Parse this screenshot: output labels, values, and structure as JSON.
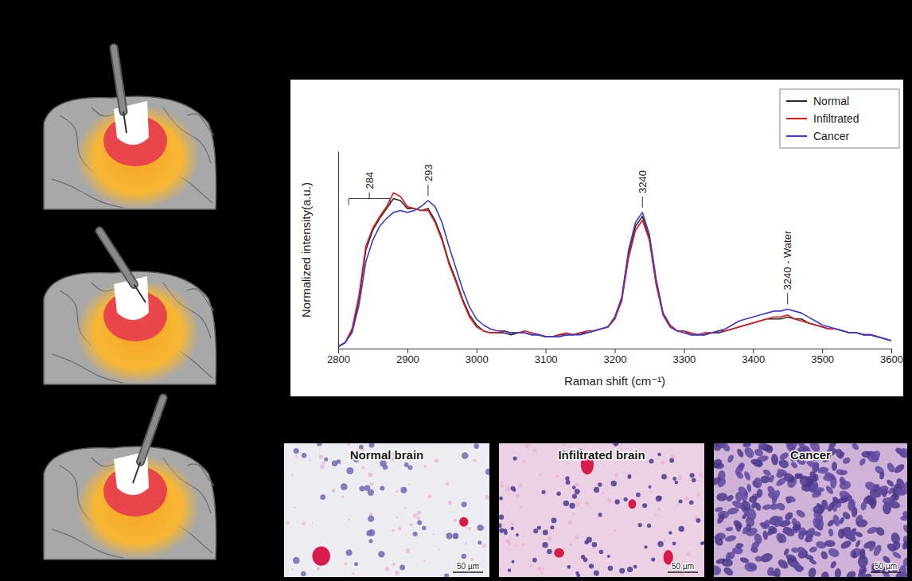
{
  "chart_data": {
    "type": "line",
    "x_label": "Raman shift (cm⁻¹)",
    "y_label": "Normalized intensity(a.u.)",
    "xlim": [
      2800,
      3600
    ],
    "xticks": [
      2800,
      2900,
      3000,
      3100,
      3200,
      3300,
      3400,
      3500,
      3600
    ],
    "ylim": [
      0,
      1
    ],
    "tick_labels": "x",
    "legend": "top-right",
    "x": [
      2800,
      2810,
      2820,
      2830,
      2840,
      2850,
      2860,
      2870,
      2880,
      2890,
      2900,
      2910,
      2920,
      2930,
      2940,
      2950,
      2960,
      2970,
      2980,
      2990,
      3000,
      3010,
      3020,
      3030,
      3040,
      3050,
      3060,
      3070,
      3080,
      3090,
      3100,
      3110,
      3120,
      3130,
      3140,
      3150,
      3160,
      3170,
      3180,
      3190,
      3200,
      3210,
      3220,
      3230,
      3240,
      3250,
      3260,
      3270,
      3280,
      3290,
      3300,
      3310,
      3320,
      3330,
      3340,
      3350,
      3360,
      3370,
      3380,
      3390,
      3400,
      3410,
      3420,
      3430,
      3440,
      3450,
      3460,
      3470,
      3480,
      3490,
      3500,
      3510,
      3520,
      3530,
      3540,
      3550,
      3560,
      3570,
      3580,
      3590,
      3600
    ],
    "series": [
      {
        "name": "Normal",
        "color": "#2b2b2b",
        "values": [
          0.01,
          0.03,
          0.09,
          0.25,
          0.5,
          0.6,
          0.66,
          0.71,
          0.76,
          0.75,
          0.71,
          0.71,
          0.7,
          0.71,
          0.65,
          0.56,
          0.44,
          0.35,
          0.25,
          0.17,
          0.12,
          0.09,
          0.08,
          0.08,
          0.08,
          0.07,
          0.08,
          0.08,
          0.07,
          0.07,
          0.06,
          0.06,
          0.07,
          0.07,
          0.07,
          0.08,
          0.08,
          0.09,
          0.1,
          0.11,
          0.15,
          0.25,
          0.48,
          0.62,
          0.67,
          0.56,
          0.33,
          0.17,
          0.11,
          0.09,
          0.09,
          0.07,
          0.07,
          0.07,
          0.08,
          0.08,
          0.09,
          0.1,
          0.11,
          0.12,
          0.13,
          0.14,
          0.15,
          0.15,
          0.15,
          0.16,
          0.15,
          0.15,
          0.13,
          0.12,
          0.11,
          0.1,
          0.1,
          0.09,
          0.08,
          0.08,
          0.07,
          0.07,
          0.06,
          0.05,
          0.04
        ]
      },
      {
        "name": "Infiltrated",
        "color": "#e41a1c",
        "values": [
          0.01,
          0.03,
          0.1,
          0.27,
          0.52,
          0.61,
          0.67,
          0.72,
          0.79,
          0.77,
          0.72,
          0.71,
          0.7,
          0.7,
          0.64,
          0.55,
          0.43,
          0.34,
          0.24,
          0.16,
          0.11,
          0.09,
          0.08,
          0.08,
          0.09,
          0.08,
          0.08,
          0.09,
          0.08,
          0.07,
          0.06,
          0.06,
          0.07,
          0.08,
          0.07,
          0.08,
          0.09,
          0.09,
          0.1,
          0.11,
          0.15,
          0.24,
          0.46,
          0.6,
          0.65,
          0.55,
          0.32,
          0.17,
          0.11,
          0.09,
          0.09,
          0.08,
          0.07,
          0.08,
          0.08,
          0.09,
          0.09,
          0.1,
          0.11,
          0.12,
          0.13,
          0.14,
          0.15,
          0.16,
          0.16,
          0.17,
          0.15,
          0.14,
          0.13,
          0.12,
          0.11,
          0.1,
          0.1,
          0.09,
          0.08,
          0.08,
          0.07,
          0.07,
          0.06,
          0.05,
          0.04
        ]
      },
      {
        "name": "Cancer",
        "color": "#3b3bd9",
        "values": [
          0.01,
          0.03,
          0.08,
          0.22,
          0.44,
          0.55,
          0.62,
          0.66,
          0.69,
          0.7,
          0.69,
          0.7,
          0.72,
          0.75,
          0.72,
          0.64,
          0.52,
          0.41,
          0.3,
          0.21,
          0.15,
          0.12,
          0.1,
          0.09,
          0.09,
          0.08,
          0.08,
          0.08,
          0.07,
          0.07,
          0.06,
          0.06,
          0.06,
          0.07,
          0.07,
          0.07,
          0.08,
          0.09,
          0.1,
          0.11,
          0.16,
          0.26,
          0.5,
          0.64,
          0.69,
          0.58,
          0.35,
          0.18,
          0.12,
          0.09,
          0.08,
          0.07,
          0.07,
          0.07,
          0.08,
          0.09,
          0.1,
          0.12,
          0.14,
          0.15,
          0.16,
          0.17,
          0.18,
          0.19,
          0.19,
          0.2,
          0.19,
          0.18,
          0.16,
          0.14,
          0.12,
          0.11,
          0.1,
          0.09,
          0.08,
          0.08,
          0.07,
          0.07,
          0.06,
          0.05,
          0.04
        ]
      }
    ],
    "annotations": [
      {
        "text": "284",
        "x": 2845,
        "range": [
          2815,
          2875
        ]
      },
      {
        "text": "293",
        "x": 2930
      },
      {
        "text": "3240",
        "x": 3240
      },
      {
        "text": "3240 - Water",
        "x": 3450
      }
    ]
  },
  "histology": [
    {
      "title": "Normal brain",
      "scale_bar": "50 µm"
    },
    {
      "title": "Infiltrated brain",
      "scale_bar": "50 µm"
    },
    {
      "title": "Cancer",
      "scale_bar": "50 µm"
    }
  ]
}
